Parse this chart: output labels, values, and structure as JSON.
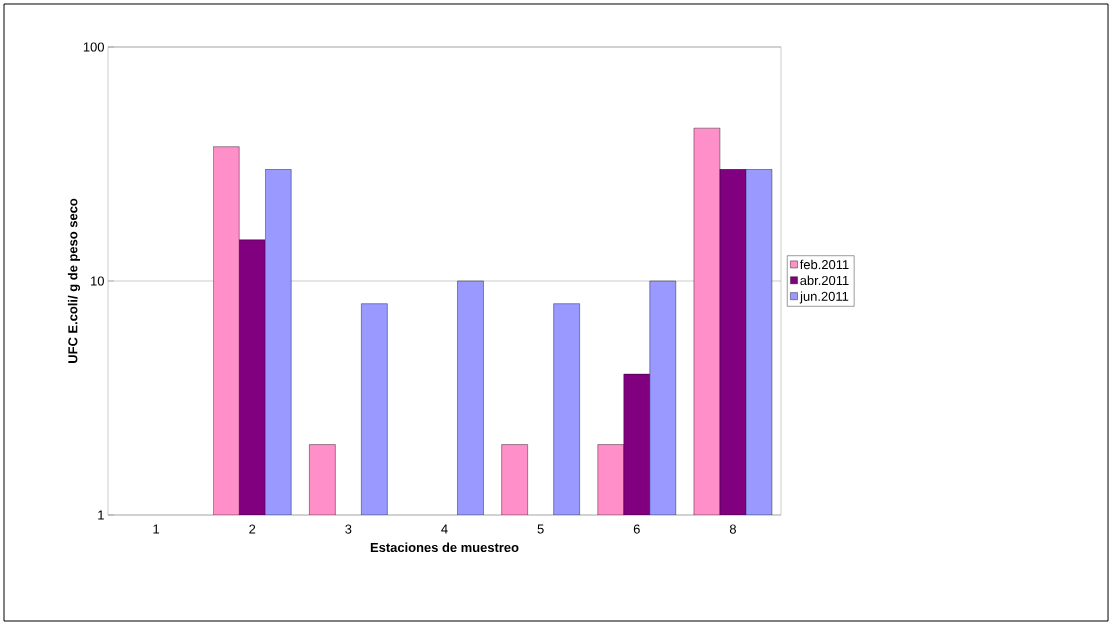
{
  "chart_data": {
    "type": "bar",
    "xlabel": "Estaciones de muestreo",
    "ylabel": "UFC E.coli/ g de peso seco",
    "categories": [
      "1",
      "2",
      "3",
      "4",
      "5",
      "6",
      "8"
    ],
    "series": [
      {
        "name": "feb.2011",
        "color": "#ff8fc8",
        "values": [
          null,
          37.5,
          2,
          null,
          2,
          2,
          45
        ]
      },
      {
        "name": "abr.2011",
        "color": "#800080",
        "values": [
          null,
          15,
          null,
          null,
          null,
          4,
          30
        ]
      },
      {
        "name": "jun.2011",
        "color": "#9999ff",
        "values": [
          null,
          30,
          8,
          10,
          8,
          10,
          30
        ]
      }
    ],
    "log": true,
    "ylim": [
      1,
      100
    ],
    "yticks": [
      1,
      10,
      100
    ],
    "grid": "y",
    "legend": "right"
  }
}
